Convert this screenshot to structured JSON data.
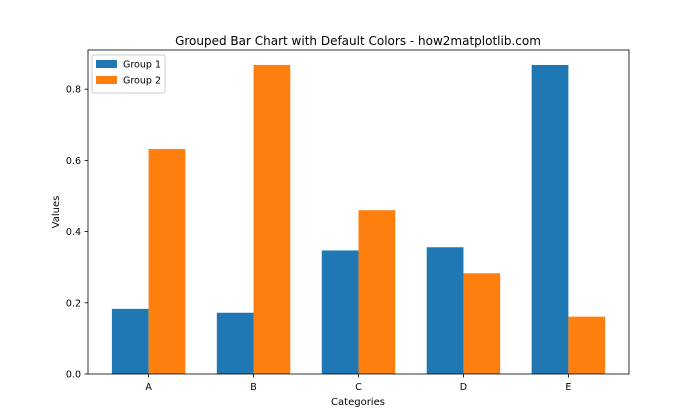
{
  "chart_data": {
    "type": "bar",
    "title": "Grouped Bar Chart with Default Colors - how2matplotlib.com",
    "xlabel": "Categories",
    "ylabel": "Values",
    "categories": [
      "A",
      "B",
      "C",
      "D",
      "E"
    ],
    "ylim": [
      0,
      0.91
    ],
    "yticks": [
      0.0,
      0.2,
      0.4,
      0.6,
      0.8
    ],
    "ytick_labels": [
      "0.0",
      "0.2",
      "0.4",
      "0.6",
      "0.8"
    ],
    "grid": false,
    "legend_position": "top-left",
    "series": [
      {
        "name": "Group 1",
        "color": "#1f77b4",
        "values": [
          0.183,
          0.172,
          0.347,
          0.356,
          0.868
        ]
      },
      {
        "name": "Group 2",
        "color": "#ff7f0e",
        "values": [
          0.632,
          0.868,
          0.46,
          0.283,
          0.161
        ]
      }
    ]
  }
}
